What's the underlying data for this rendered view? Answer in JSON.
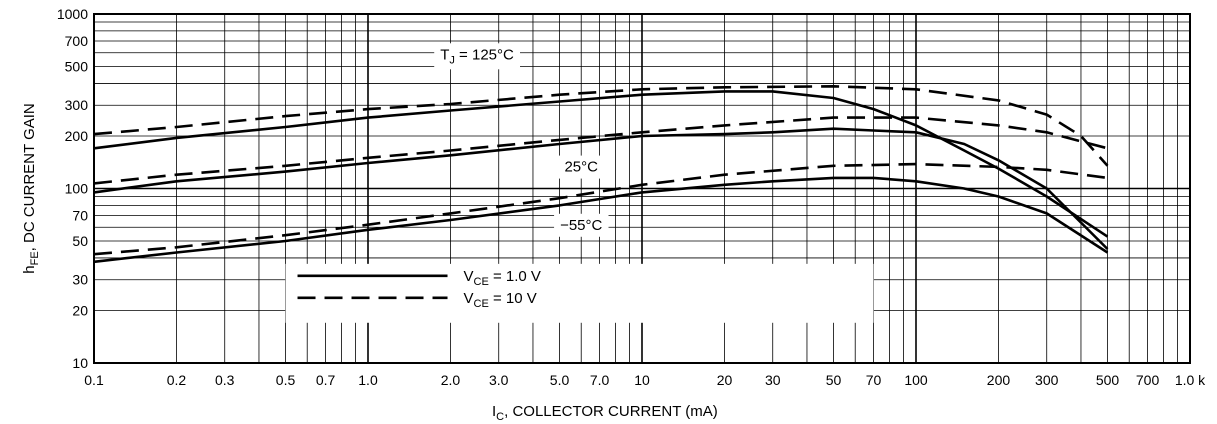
{
  "chart_data": {
    "type": "line",
    "x_scale": "log",
    "y_scale": "log",
    "xlim": [
      0.1,
      1000
    ],
    "ylim": [
      10,
      1000
    ],
    "grid": true,
    "xlabel": {
      "main": "I",
      "sub": "C",
      "rest": ", COLLECTOR CURRENT (mA)"
    },
    "ylabel": {
      "main": "h",
      "sub": "FE",
      "rest": ", DC CURRENT GAIN"
    },
    "x_ticks": [
      {
        "v": 0.1,
        "label": "0.1"
      },
      {
        "v": 0.2,
        "label": "0.2"
      },
      {
        "v": 0.3,
        "label": "0.3"
      },
      {
        "v": 0.5,
        "label": "0.5"
      },
      {
        "v": 0.7,
        "label": "0.7"
      },
      {
        "v": 1,
        "label": "1.0"
      },
      {
        "v": 2,
        "label": "2.0"
      },
      {
        "v": 3,
        "label": "3.0"
      },
      {
        "v": 5,
        "label": "5.0"
      },
      {
        "v": 7,
        "label": "7.0"
      },
      {
        "v": 10,
        "label": "10"
      },
      {
        "v": 20,
        "label": "20"
      },
      {
        "v": 30,
        "label": "30"
      },
      {
        "v": 50,
        "label": "50"
      },
      {
        "v": 70,
        "label": "70"
      },
      {
        "v": 100,
        "label": "100"
      },
      {
        "v": 200,
        "label": "200"
      },
      {
        "v": 300,
        "label": "300"
      },
      {
        "v": 500,
        "label": "500"
      },
      {
        "v": 700,
        "label": "700"
      },
      {
        "v": 1000,
        "label": "1.0 k"
      }
    ],
    "y_ticks": [
      {
        "v": 10,
        "label": "10"
      },
      {
        "v": 20,
        "label": "20"
      },
      {
        "v": 30,
        "label": "30"
      },
      {
        "v": 50,
        "label": "50"
      },
      {
        "v": 70,
        "label": "70"
      },
      {
        "v": 100,
        "label": "100"
      },
      {
        "v": 200,
        "label": "200"
      },
      {
        "v": 300,
        "label": "300"
      },
      {
        "v": 500,
        "label": "500"
      },
      {
        "v": 700,
        "label": "700"
      },
      {
        "v": 1000,
        "label": "1000"
      }
    ],
    "annotations": [
      {
        "main": "T",
        "sub": "J",
        "rest": " = 125°C",
        "x": 2.5,
        "y": 550
      },
      {
        "main": "",
        "sub": "",
        "rest": "25°C",
        "x": 6,
        "y": 125
      },
      {
        "main": "",
        "sub": "",
        "rest": "−55°C",
        "x": 6,
        "y": 58
      }
    ],
    "legend": {
      "position": "bottom-center",
      "entries": [
        {
          "style": "solid",
          "main": "V",
          "sub": "CE",
          "rest": " = 1.0 V"
        },
        {
          "style": "dashed",
          "main": "V",
          "sub": "CE",
          "rest": " = 10 V"
        }
      ]
    },
    "series": [
      {
        "temperature": "125°C",
        "vce": "1.0 V",
        "style": "solid",
        "points": [
          [
            0.1,
            170
          ],
          [
            0.2,
            195
          ],
          [
            0.5,
            225
          ],
          [
            1,
            255
          ],
          [
            2,
            280
          ],
          [
            5,
            315
          ],
          [
            10,
            345
          ],
          [
            20,
            360
          ],
          [
            30,
            360
          ],
          [
            50,
            330
          ],
          [
            70,
            285
          ],
          [
            100,
            230
          ],
          [
            150,
            165
          ],
          [
            200,
            130
          ],
          [
            300,
            90
          ],
          [
            500,
            53
          ]
        ]
      },
      {
        "temperature": "125°C",
        "vce": "10 V",
        "style": "dashed",
        "points": [
          [
            0.1,
            205
          ],
          [
            0.2,
            225
          ],
          [
            0.5,
            260
          ],
          [
            1,
            285
          ],
          [
            2,
            305
          ],
          [
            5,
            345
          ],
          [
            10,
            370
          ],
          [
            20,
            380
          ],
          [
            50,
            385
          ],
          [
            100,
            370
          ],
          [
            200,
            320
          ],
          [
            300,
            265
          ],
          [
            400,
            200
          ],
          [
            500,
            135
          ]
        ]
      },
      {
        "temperature": "25°C",
        "vce": "1.0 V",
        "style": "solid",
        "points": [
          [
            0.1,
            95
          ],
          [
            0.2,
            110
          ],
          [
            0.5,
            125
          ],
          [
            1,
            140
          ],
          [
            2,
            155
          ],
          [
            5,
            180
          ],
          [
            10,
            200
          ],
          [
            20,
            205
          ],
          [
            30,
            210
          ],
          [
            50,
            220
          ],
          [
            70,
            215
          ],
          [
            100,
            210
          ],
          [
            150,
            180
          ],
          [
            200,
            145
          ],
          [
            300,
            100
          ],
          [
            500,
            45
          ]
        ]
      },
      {
        "temperature": "25°C",
        "vce": "10 V",
        "style": "dashed",
        "points": [
          [
            0.1,
            107
          ],
          [
            0.2,
            120
          ],
          [
            0.5,
            135
          ],
          [
            1,
            150
          ],
          [
            2,
            165
          ],
          [
            5,
            190
          ],
          [
            10,
            210
          ],
          [
            20,
            230
          ],
          [
            50,
            255
          ],
          [
            100,
            255
          ],
          [
            200,
            230
          ],
          [
            300,
            210
          ],
          [
            500,
            170
          ]
        ]
      },
      {
        "temperature": "−55°C",
        "vce": "1.0 V",
        "style": "solid",
        "points": [
          [
            0.1,
            38
          ],
          [
            0.2,
            43
          ],
          [
            0.5,
            50
          ],
          [
            1,
            58
          ],
          [
            2,
            66
          ],
          [
            5,
            80
          ],
          [
            10,
            95
          ],
          [
            20,
            105
          ],
          [
            30,
            110
          ],
          [
            50,
            115
          ],
          [
            70,
            115
          ],
          [
            100,
            110
          ],
          [
            150,
            100
          ],
          [
            200,
            90
          ],
          [
            300,
            72
          ],
          [
            500,
            43
          ]
        ]
      },
      {
        "temperature": "−55°C",
        "vce": "10 V",
        "style": "dashed",
        "points": [
          [
            0.1,
            42
          ],
          [
            0.2,
            46
          ],
          [
            0.5,
            54
          ],
          [
            1,
            62
          ],
          [
            2,
            72
          ],
          [
            5,
            88
          ],
          [
            10,
            105
          ],
          [
            20,
            120
          ],
          [
            50,
            135
          ],
          [
            100,
            138
          ],
          [
            200,
            133
          ],
          [
            300,
            128
          ],
          [
            500,
            115
          ]
        ]
      }
    ]
  }
}
